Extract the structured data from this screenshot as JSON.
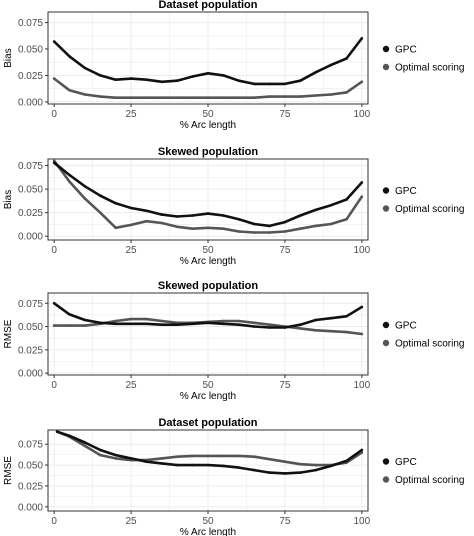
{
  "colors": {
    "gpc": "#111111",
    "optimal_scoring": "#555555",
    "panel_border": "#333333",
    "grid": "#ebebeb",
    "text": "#000000",
    "tick_text": "#4d4d4d"
  },
  "chart_data": [
    {
      "type": "line",
      "title": "Dataset population",
      "xlabel": "% Arc length",
      "ylabel": "Bias",
      "xlim": [
        -2,
        102
      ],
      "ylim": [
        -0.002,
        0.085
      ],
      "x_ticks": [
        0,
        25,
        50,
        75,
        100
      ],
      "x_tick_labels": [
        "0",
        "25",
        "50",
        "75",
        "100"
      ],
      "y_ticks": [
        0,
        0.025,
        0.05,
        0.075
      ],
      "y_tick_labels": [
        "0.000",
        "0.025",
        "0.050",
        "0.075"
      ],
      "grid": true,
      "legend_position": "right",
      "series": [
        {
          "name": "GPC",
          "x": [
            0,
            5,
            10,
            15,
            20,
            25,
            30,
            35,
            40,
            45,
            50,
            55,
            60,
            65,
            70,
            75,
            80,
            85,
            90,
            95,
            100
          ],
          "values": [
            0.057,
            0.043,
            0.032,
            0.025,
            0.021,
            0.022,
            0.021,
            0.019,
            0.02,
            0.024,
            0.027,
            0.025,
            0.02,
            0.017,
            0.017,
            0.017,
            0.02,
            0.028,
            0.035,
            0.041,
            0.06
          ]
        },
        {
          "name": "Optimal scoring",
          "x": [
            0,
            5,
            10,
            15,
            20,
            25,
            30,
            35,
            40,
            45,
            50,
            55,
            60,
            65,
            70,
            75,
            80,
            85,
            90,
            95,
            100
          ],
          "values": [
            0.022,
            0.011,
            0.007,
            0.005,
            0.004,
            0.004,
            0.004,
            0.004,
            0.004,
            0.004,
            0.004,
            0.004,
            0.004,
            0.004,
            0.005,
            0.005,
            0.005,
            0.006,
            0.007,
            0.009,
            0.019
          ]
        }
      ]
    },
    {
      "type": "line",
      "title": "Skewed population",
      "xlabel": "% Arc length",
      "ylabel": "Bias",
      "xlim": [
        -2,
        102
      ],
      "ylim": [
        -0.004,
        0.082
      ],
      "x_ticks": [
        0,
        25,
        50,
        75,
        100
      ],
      "x_tick_labels": [
        "0",
        "25",
        "50",
        "75",
        "100"
      ],
      "y_ticks": [
        0,
        0.025,
        0.05,
        0.075
      ],
      "y_tick_labels": [
        "0.000",
        "0.025",
        "0.050",
        "0.075"
      ],
      "grid": true,
      "legend_position": "right",
      "series": [
        {
          "name": "GPC",
          "x": [
            0,
            5,
            10,
            15,
            20,
            25,
            30,
            35,
            40,
            45,
            50,
            55,
            60,
            65,
            70,
            75,
            80,
            85,
            90,
            95,
            100
          ],
          "values": [
            0.078,
            0.065,
            0.053,
            0.043,
            0.035,
            0.03,
            0.027,
            0.023,
            0.021,
            0.022,
            0.024,
            0.022,
            0.018,
            0.013,
            0.011,
            0.015,
            0.022,
            0.028,
            0.033,
            0.039,
            0.057
          ]
        },
        {
          "name": "Optimal scoring",
          "x": [
            0,
            5,
            10,
            15,
            20,
            25,
            30,
            35,
            40,
            45,
            50,
            55,
            60,
            65,
            70,
            75,
            80,
            85,
            90,
            95,
            100
          ],
          "values": [
            0.08,
            0.058,
            0.04,
            0.025,
            0.009,
            0.012,
            0.016,
            0.014,
            0.01,
            0.008,
            0.009,
            0.008,
            0.005,
            0.004,
            0.004,
            0.005,
            0.008,
            0.011,
            0.013,
            0.018,
            0.042
          ]
        }
      ]
    },
    {
      "type": "line",
      "title": "Skewed population",
      "xlabel": "% Arc length",
      "ylabel": "RMSE",
      "xlim": [
        -2,
        102
      ],
      "ylim": [
        -0.002,
        0.086
      ],
      "x_ticks": [
        0,
        25,
        50,
        75,
        100
      ],
      "x_tick_labels": [
        "0",
        "25",
        "50",
        "75",
        "100"
      ],
      "y_ticks": [
        0,
        0.025,
        0.05,
        0.075
      ],
      "y_tick_labels": [
        "0.000",
        "0.025",
        "0.050",
        "0.075"
      ],
      "grid": true,
      "legend_position": "right",
      "series": [
        {
          "name": "GPC",
          "x": [
            0,
            5,
            10,
            15,
            20,
            25,
            30,
            35,
            40,
            45,
            50,
            55,
            60,
            65,
            70,
            75,
            80,
            85,
            90,
            95,
            100
          ],
          "values": [
            0.075,
            0.063,
            0.057,
            0.054,
            0.053,
            0.053,
            0.053,
            0.052,
            0.052,
            0.053,
            0.054,
            0.053,
            0.052,
            0.05,
            0.049,
            0.049,
            0.052,
            0.057,
            0.059,
            0.061,
            0.071
          ]
        },
        {
          "name": "Optimal scoring",
          "x": [
            0,
            5,
            10,
            15,
            20,
            25,
            30,
            35,
            40,
            45,
            50,
            55,
            60,
            65,
            70,
            75,
            80,
            85,
            90,
            95,
            100
          ],
          "values": [
            0.051,
            0.051,
            0.051,
            0.053,
            0.056,
            0.058,
            0.058,
            0.056,
            0.054,
            0.054,
            0.055,
            0.056,
            0.056,
            0.054,
            0.052,
            0.05,
            0.048,
            0.046,
            0.045,
            0.044,
            0.042
          ]
        }
      ]
    },
    {
      "type": "line",
      "title": "Dataset population",
      "xlabel": "% Arc length",
      "ylabel": "RMSE",
      "xlim": [
        -2,
        102
      ],
      "ylim": [
        -0.005,
        0.092
      ],
      "x_ticks": [
        0,
        25,
        50,
        75,
        100
      ],
      "x_tick_labels": [
        "0",
        "25",
        "50",
        "75",
        "100"
      ],
      "y_ticks": [
        0,
        0.025,
        0.05,
        0.075
      ],
      "y_tick_labels": [
        "0.000",
        "0.025",
        "0.050",
        "0.075"
      ],
      "grid": true,
      "legend_position": "right",
      "series": [
        {
          "name": "GPC",
          "x": [
            1,
            5,
            10,
            15,
            20,
            25,
            30,
            35,
            40,
            45,
            50,
            55,
            60,
            65,
            70,
            75,
            80,
            85,
            90,
            95,
            100
          ],
          "values": [
            0.09,
            0.085,
            0.077,
            0.068,
            0.062,
            0.058,
            0.054,
            0.052,
            0.05,
            0.05,
            0.05,
            0.049,
            0.047,
            0.044,
            0.041,
            0.04,
            0.041,
            0.044,
            0.049,
            0.055,
            0.068
          ]
        },
        {
          "name": "Optimal scoring",
          "x": [
            1,
            5,
            10,
            15,
            20,
            25,
            30,
            35,
            40,
            45,
            50,
            55,
            60,
            65,
            70,
            75,
            80,
            85,
            90,
            95,
            100
          ],
          "values": [
            0.09,
            0.084,
            0.073,
            0.062,
            0.058,
            0.056,
            0.056,
            0.058,
            0.06,
            0.061,
            0.061,
            0.061,
            0.061,
            0.06,
            0.057,
            0.054,
            0.051,
            0.05,
            0.05,
            0.053,
            0.065
          ]
        }
      ]
    }
  ]
}
